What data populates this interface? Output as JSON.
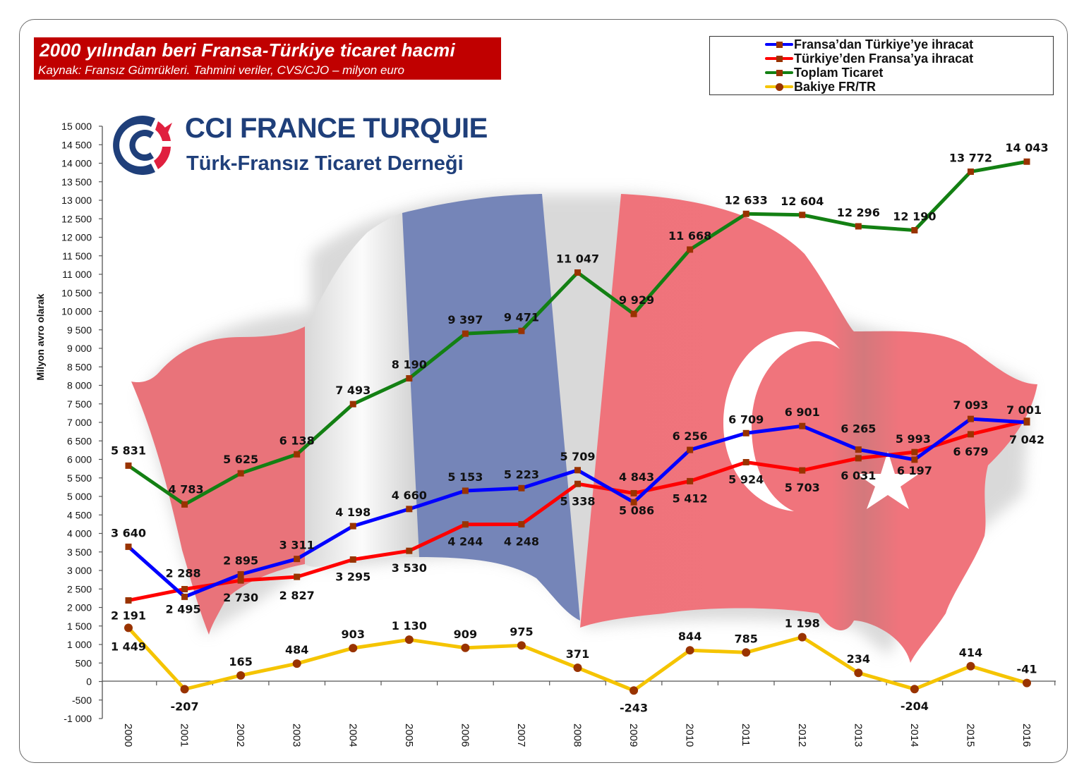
{
  "title": {
    "main": "2000 yılından beri Fransa-Türkiye ticaret hacmi",
    "subtitle": "Kaynak: Fransız Gümrükleri. Tahmini veriler, CVS/CJO – milyon euro"
  },
  "logo": {
    "line1": "CCI FRANCE TURQUIE",
    "line2": "Türk-Fransız Ticaret Derneği",
    "colors": {
      "blue": "#1f3f7a",
      "red": "#e0203f"
    }
  },
  "legend": {
    "placement": "top-right",
    "items": [
      {
        "label": "Fransa’dan Türkiye’ye ihracat",
        "color": "#0000ff",
        "marker": "square"
      },
      {
        "label": "Türkiye’den Fransa’ya ihracat",
        "color": "#ff0000",
        "marker": "square"
      },
      {
        "label": "Toplam Ticaret",
        "color": "#138013",
        "marker": "square"
      },
      {
        "label": "Bakiye FR/TR",
        "color": "#f5c400",
        "marker": "circle"
      }
    ]
  },
  "chart_data": {
    "type": "line",
    "title": "2000 yılından beri Fransa-Türkiye ticaret hacmi",
    "xlabel": "",
    "ylabel": "Milyon avro olarak",
    "ylim": [
      -1000,
      15000
    ],
    "yticks": [
      15000,
      14500,
      14000,
      13500,
      13000,
      12500,
      12000,
      11500,
      11000,
      10500,
      10000,
      9500,
      9000,
      8500,
      8000,
      7500,
      7000,
      6500,
      6000,
      5500,
      5000,
      4500,
      4000,
      3500,
      3000,
      2500,
      2000,
      1500,
      1000,
      500,
      0,
      -500,
      -1000
    ],
    "ytick_labels": [
      "15 000",
      "14 500",
      "14 000",
      "13 500",
      "13 000",
      "12 500",
      "12 000",
      "11 500",
      "11 000",
      "10 500",
      "10 000",
      "9 500",
      "9 000",
      "8 500",
      "8 000",
      "7 500",
      "7 000",
      "6 500",
      "6 000",
      "5 500",
      "5 000",
      "4 500",
      "4 000",
      "3 500",
      "3 000",
      "2 500",
      "2 000",
      "1 500",
      "1 000",
      "500",
      "0",
      "-500",
      "-1 000"
    ],
    "categories": [
      "2000",
      "2001",
      "2002",
      "2003",
      "2004",
      "2005",
      "2006",
      "2007",
      "2008",
      "2009",
      "2010",
      "2011",
      "2012",
      "2013",
      "2014",
      "2015",
      "2016"
    ],
    "marker_color": "#993300",
    "series": [
      {
        "name": "Fransa’dan Türkiye’ye ihracat",
        "color": "#0000ff",
        "marker": "square",
        "values": [
          3640,
          2288,
          2895,
          3311,
          4198,
          4660,
          5153,
          5223,
          5709,
          4843,
          6256,
          6709,
          6901,
          6265,
          5993,
          7093,
          7001
        ],
        "labels": [
          "3 640",
          "2 288",
          "2 895",
          "3 311",
          "4 198",
          "4 660",
          "5 153",
          "5 223",
          "5 709",
          "4 843",
          "6 256",
          "6 709",
          "6 901",
          "6 265",
          "5 993",
          "7 093",
          "7 001"
        ],
        "label_pos": [
          "above",
          "above",
          "above",
          "above",
          "above",
          "above",
          "above",
          "above",
          "above",
          "above",
          "above",
          "above",
          "above",
          "above",
          "above",
          "above",
          "above"
        ]
      },
      {
        "name": "Türkiye’den Fransa’ya ihracat",
        "color": "#ff0000",
        "marker": "square",
        "values": [
          2191,
          2495,
          2730,
          2827,
          3295,
          3530,
          4244,
          4248,
          5338,
          5086,
          5412,
          5924,
          5703,
          6031,
          6197,
          6679,
          7042
        ],
        "labels": [
          "2 191",
          "2 495",
          "2 730",
          "2 827",
          "3 295",
          "3 530",
          "4 244",
          "4 248",
          "5 338",
          "5 086",
          "5 412",
          "5 924",
          "5 703",
          "6 031",
          "6 197",
          "6 679",
          "7 042"
        ],
        "label_pos": [
          "below",
          "below",
          "below",
          "below",
          "below",
          "below",
          "below",
          "below",
          "below",
          "below",
          "below",
          "below",
          "below",
          "below",
          "below",
          "below",
          "below"
        ]
      },
      {
        "name": "Toplam Ticaret",
        "color": "#138013",
        "marker": "square",
        "values": [
          5831,
          4783,
          5625,
          6138,
          7493,
          8190,
          9397,
          9471,
          11047,
          9929,
          11668,
          12633,
          12604,
          12296,
          12190,
          13772,
          14043
        ],
        "labels": [
          "5 831",
          "4 783",
          "5 625",
          "6 138",
          "7 493",
          "8 190",
          "9 397",
          "9 471",
          "11 047",
          "9 929",
          "11 668",
          "12 633",
          "12 604",
          "12 296",
          "12 190",
          "13 772",
          "14 043"
        ],
        "label_pos": [
          "above",
          "above",
          "above",
          "above",
          "above",
          "above",
          "above",
          "above",
          "above",
          "above",
          "above",
          "above",
          "above",
          "above",
          "above",
          "above",
          "above"
        ]
      },
      {
        "name": "Bakiye FR/TR",
        "color": "#f5c400",
        "marker": "circle",
        "values": [
          1449,
          -207,
          165,
          484,
          903,
          1130,
          909,
          975,
          371,
          -243,
          844,
          785,
          1198,
          234,
          -204,
          414,
          -41
        ],
        "labels": [
          "1 449",
          "-207",
          "165",
          "484",
          "903",
          "1 130",
          "909",
          "975",
          "371",
          "-243",
          "844",
          "785",
          "1 198",
          "234",
          "-204",
          "414",
          "-41"
        ],
        "label_pos": [
          "below",
          "below",
          "above",
          "above",
          "above",
          "above",
          "above",
          "above",
          "above",
          "below",
          "above",
          "above",
          "above",
          "above",
          "below",
          "above",
          "above"
        ]
      }
    ],
    "grid": false,
    "background": "France and Turkey flags illustration"
  }
}
